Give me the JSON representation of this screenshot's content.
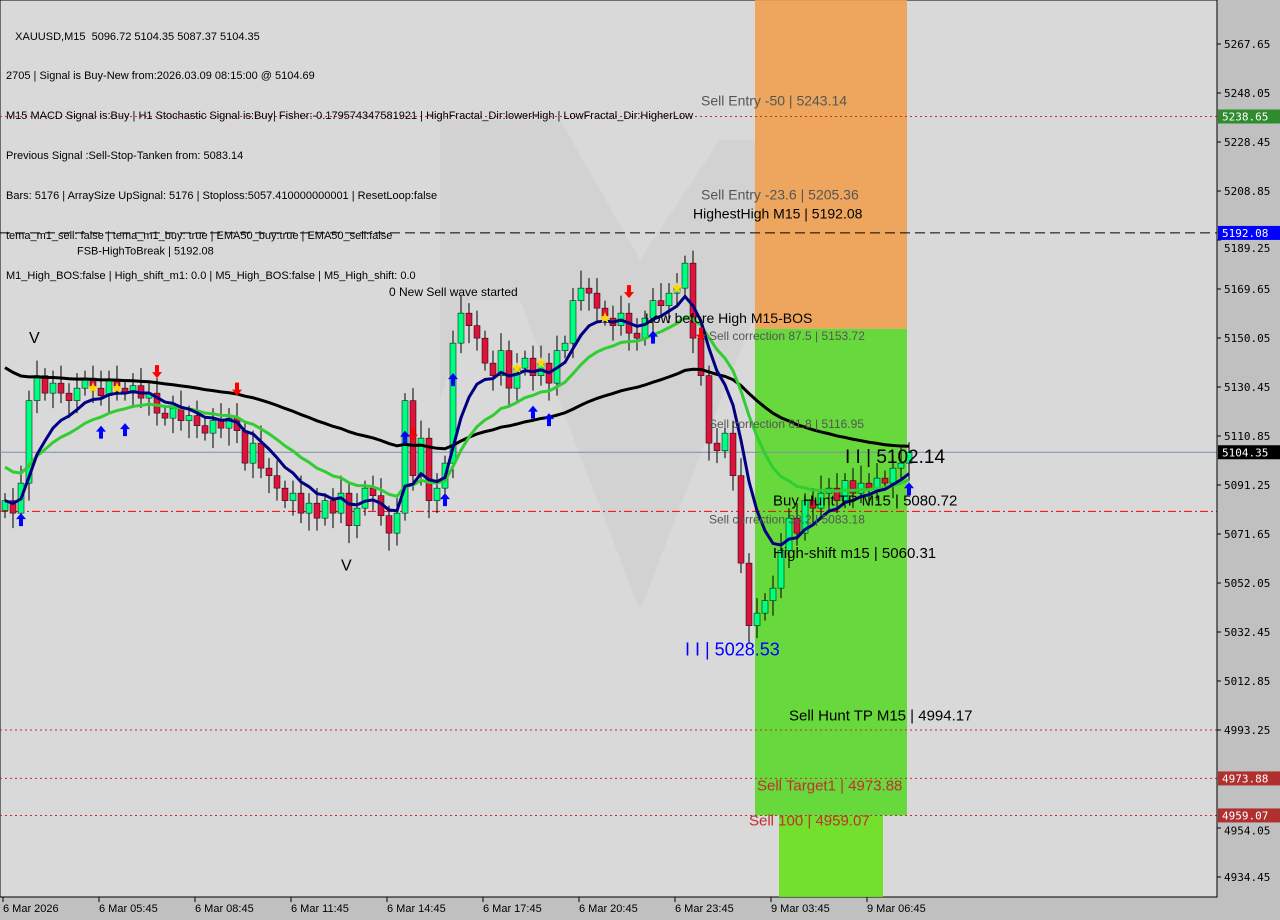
{
  "info_lines": [
    "   XAUUSD,M15  5096.72 5104.35 5087.37 5104.35",
    "2705 | Signal is Buy-New from:2026.03.09 08:15:00 @ 5104.69",
    "M15 MACD Signal is:Buy | H1 Stochastic Signal is:Buy| Fisher:-0.179574347581921 | HighFractal_Dir:lowerHigh | LowFractal_Dir:HigherLow",
    "Previous Signal :Sell-Stop-Tanken from: 5083.14",
    "Bars: 5176 | ArraySize UpSignal: 5176 | Stoploss:5057.410000000001 | ResetLoop:false",
    "tema_m1_sell: false | tema_m1_buy: true | EMA50_buy:true | EMA50_sell:false",
    "M1_High_BOS:false | High_shift_m1: 0.0 | M5_High_BOS:false | M5_High_shift: 0.0"
  ],
  "watermark": "MARKETZITRADE",
  "chart_data": {
    "type": "candlestick",
    "symbol": "XAUUSD",
    "timeframe": "M15",
    "ylim": [
      4925,
      5286
    ],
    "y_ticks": [
      "5267.65",
      "5248.05",
      "5228.45",
      "5208.85",
      "5189.25",
      "5169.65",
      "5150.05",
      "5130.45",
      "5110.85",
      "5091.25",
      "5071.65",
      "5052.05",
      "5032.45",
      "5012.85",
      "4993.25",
      "4954.05",
      "4934.45"
    ],
    "x_ticks": [
      {
        "bar": 0,
        "label": "6 Mar 2026"
      },
      {
        "bar": 12,
        "label": "6 Mar 05:45"
      },
      {
        "bar": 24,
        "label": "6 Mar 08:45"
      },
      {
        "bar": 36,
        "label": "6 Mar 11:45"
      },
      {
        "bar": 48,
        "label": "6 Mar 14:45"
      },
      {
        "bar": 60,
        "label": "6 Mar 17:45"
      },
      {
        "bar": 72,
        "label": "6 Mar 20:45"
      },
      {
        "bar": 84,
        "label": "6 Mar 23:45"
      },
      {
        "bar": 96,
        "label": "9 Mar 03:45"
      },
      {
        "bar": 108,
        "label": "9 Mar 06:45"
      }
    ],
    "close": [
      5085,
      5080,
      5092,
      5125,
      5135,
      5128,
      5132,
      5128,
      5125,
      5130,
      5134,
      5130,
      5127,
      5133,
      5130,
      5128,
      5131,
      5126,
      5128,
      5120,
      5118,
      5122,
      5117,
      5119,
      5115,
      5112,
      5117,
      5114,
      5118,
      5113,
      5100,
      5108,
      5098,
      5095,
      5090,
      5085,
      5088,
      5080,
      5084,
      5078,
      5085,
      5080,
      5088,
      5075,
      5082,
      5090,
      5087,
      5079,
      5072,
      5080,
      5125,
      5095,
      5110,
      5085,
      5090,
      5100,
      5148,
      5160,
      5155,
      5150,
      5140,
      5135,
      5145,
      5130,
      5138,
      5142,
      5135,
      5140,
      5132,
      5145,
      5148,
      5165,
      5170,
      5168,
      5162,
      5158,
      5155,
      5160,
      5152,
      5150,
      5158,
      5165,
      5163,
      5168,
      5170,
      5180,
      5150,
      5135,
      5108,
      5105,
      5112,
      5095,
      5060,
      5035,
      5040,
      5045,
      5050,
      5065,
      5078,
      5072,
      5085,
      5082,
      5088,
      5090,
      5085,
      5093,
      5088,
      5092,
      5090,
      5094,
      5092,
      5098,
      5100,
      5104.35
    ],
    "price_tags": [
      {
        "price": 5238.65,
        "label": "5238.65",
        "color": "#2e8b2e"
      },
      {
        "price": 5192.08,
        "label": "5192.08",
        "color": "#0000ff"
      },
      {
        "price": 5104.35,
        "label": "5104.35",
        "color": "#000000"
      },
      {
        "price": 4973.88,
        "label": "4973.88",
        "color": "#b03030"
      },
      {
        "price": 4959.07,
        "label": "4959.07",
        "color": "#b03030"
      }
    ],
    "levels": [
      {
        "price": 5238.65,
        "style": "dotted",
        "color": "#c03030"
      },
      {
        "price": 5192.08,
        "style": "dashed",
        "color": "#000000"
      },
      {
        "price": 5104.35,
        "style": "solid",
        "color": "#7890a8"
      },
      {
        "price": 5080.72,
        "style": "dashdot",
        "color": "#ff0000"
      },
      {
        "price": 4993.25,
        "style": "dotted",
        "color": "#c03030"
      },
      {
        "price": 4973.88,
        "style": "dotted",
        "color": "#c03030"
      },
      {
        "price": 4959.07,
        "style": "dotted",
        "color": "#c03030"
      }
    ],
    "annotations": [
      {
        "text": "Sell Entry -50 | 5243.14",
        "bar": 88,
        "price": 5243.14,
        "color": "#555555",
        "size": 14
      },
      {
        "text": "Sell Entry -23.6 | 5205.36",
        "bar": 88,
        "price": 5205.36,
        "color": "#555555",
        "size": 14
      },
      {
        "text": "HighestHigh   M15 | 5192.08",
        "bar": 87,
        "price": 5200,
        "color": "#000000",
        "size": 14
      },
      {
        "text": "FSB-HighToBreak | 5192.08",
        "bar": 10,
        "price": 5194,
        "color": "#000000",
        "size": 11
      },
      {
        "text": "0 New Sell wave started",
        "bar": 49,
        "price": 5170,
        "color": "#000000",
        "size": 12
      },
      {
        "text": "Low before High   M15-BOS",
        "bar": 81,
        "price": 5156,
        "color": "#000000",
        "size": 14
      },
      {
        "text": "Sell correction 87.5 | 5153.72",
        "bar": 89,
        "price": 5150,
        "color": "#555555",
        "size": 12
      },
      {
        "text": "Sell correction 61.8 | 5116.95",
        "bar": 89,
        "price": 5114,
        "color": "#555555",
        "size": 12
      },
      {
        "text": "I I | 5102.14",
        "bar": 106,
        "price": 5100,
        "color": "#000000",
        "size": 19
      },
      {
        "text": "Buy Hunt TP M15 | 5080.72",
        "bar": 97,
        "price": 5083,
        "color": "#000000",
        "size": 15
      },
      {
        "text": "Sell correction 38.2 | 5083.18",
        "bar": 89,
        "price": 5078,
        "color": "#555555",
        "size": 12
      },
      {
        "text": "High-shift m15 | 5060.31",
        "bar": 97,
        "price": 5062,
        "color": "#000000",
        "size": 15
      },
      {
        "text": "I I | 5028.53",
        "bar": 86,
        "price": 5023,
        "color": "#0000ff",
        "size": 18
      },
      {
        "text": "Sell Hunt TP M15 | 4994.17",
        "bar": 99,
        "price": 4997,
        "color": "#000000",
        "size": 15
      },
      {
        "text": "Sell Target1 | 4973.88",
        "bar": 95,
        "price": 4969,
        "color": "#c03030",
        "size": 15
      },
      {
        "text": "Sell 100 | 4959.07",
        "bar": 94,
        "price": 4955,
        "color": "#c03030",
        "size": 15
      },
      {
        "text": "V",
        "bar": 4,
        "price": 5148,
        "color": "#000000",
        "size": 16
      },
      {
        "text": "V",
        "bar": 43,
        "price": 5057,
        "color": "#000000",
        "size": 16
      }
    ],
    "markers": [
      {
        "bar": 2,
        "type": "buy"
      },
      {
        "bar": 12,
        "type": "buy"
      },
      {
        "bar": 15,
        "type": "buy"
      },
      {
        "bar": 19,
        "type": "sell"
      },
      {
        "bar": 29,
        "type": "sell"
      },
      {
        "bar": 51,
        "type": "sell"
      },
      {
        "bar": 50,
        "type": "buy"
      },
      {
        "bar": 55,
        "type": "buy"
      },
      {
        "bar": 56,
        "type": "buy"
      },
      {
        "bar": 66,
        "type": "buy"
      },
      {
        "bar": 68,
        "type": "buy"
      },
      {
        "bar": 78,
        "type": "sell"
      },
      {
        "bar": 81,
        "type": "buy"
      },
      {
        "bar": 87,
        "type": "sell"
      },
      {
        "bar": 113,
        "type": "buy"
      },
      {
        "bar": 11,
        "type": "star"
      },
      {
        "bar": 14,
        "type": "star"
      },
      {
        "bar": 64,
        "type": "star"
      },
      {
        "bar": 67,
        "type": "star"
      },
      {
        "bar": 75,
        "type": "star"
      },
      {
        "bar": 84,
        "type": "star"
      }
    ],
    "zones": [
      {
        "from_bar": 94,
        "to_bar": 112,
        "top": 5286,
        "bottom": 5153.72,
        "color": "#f0a050"
      },
      {
        "from_bar": 94,
        "to_bar": 112,
        "top": 5153.72,
        "bottom": 4959.07,
        "color": "#5ad82a"
      },
      {
        "from_bar": 97,
        "to_bar": 109,
        "top": 4959.07,
        "bottom": 4925,
        "color": "#66e01a"
      }
    ],
    "colors": {
      "bull": "#00ff7f",
      "bear": "#dc143c",
      "ema_fast": "#000080",
      "ema_mid": "#32cd32",
      "ema_slow": "#000000"
    }
  }
}
